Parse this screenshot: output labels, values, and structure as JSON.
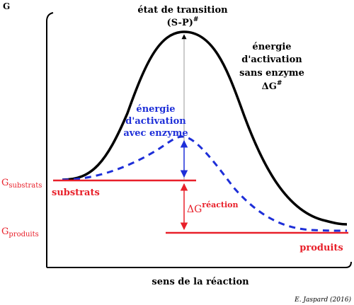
{
  "axes": {
    "y_label": "G",
    "x_label": "sens de la réaction"
  },
  "labels": {
    "transition_line1": "état de transition",
    "transition_line2": "(S-P)",
    "transition_sup": "#",
    "uncat_line1": "énergie",
    "uncat_line2": "d'activation",
    "uncat_line3": "sans enzyme",
    "uncat_line4": "ΔG",
    "uncat_sup": "#",
    "cat_line1": "énergie",
    "cat_line2": "d'activation",
    "cat_line3": "avec enzyme",
    "g_substrats": "G",
    "g_substrats_sub": "substrats",
    "g_produits": "G",
    "g_produits_sub": "produits",
    "substrats": "substrats",
    "produits": "produits",
    "delta_g": "ΔG",
    "delta_g_sup": "réaction",
    "credit": "E. Jaspard (2016)"
  },
  "colors": {
    "black": "#000000",
    "red": "#e8202a",
    "blue": "#1e2fd8",
    "gray": "#9a9a9a"
  }
}
